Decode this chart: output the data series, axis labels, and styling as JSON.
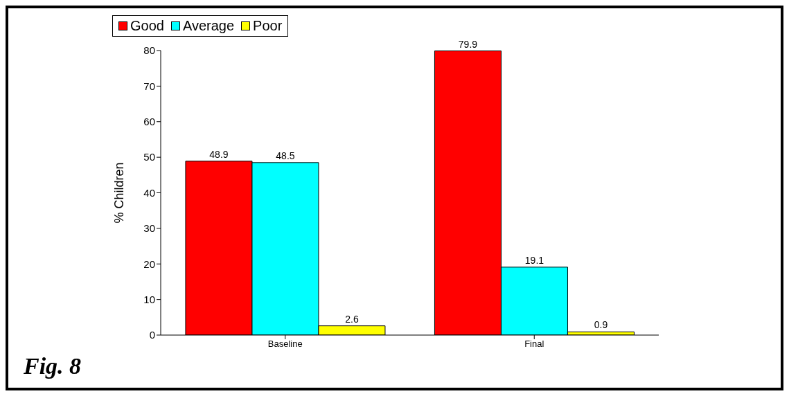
{
  "chart_data": {
    "type": "bar",
    "ylabel": "% Children",
    "categories": [
      "Baseline",
      "Final"
    ],
    "series": [
      {
        "name": "Good",
        "color": "#ff0000",
        "values": [
          48.9,
          79.9
        ]
      },
      {
        "name": "Average",
        "color": "#00ffff",
        "values": [
          48.5,
          19.1
        ]
      },
      {
        "name": "Poor",
        "color": "#ffff00",
        "values": [
          2.6,
          0.9
        ]
      }
    ],
    "ylim": [
      0,
      80
    ],
    "yticks": [
      0,
      10,
      20,
      30,
      40,
      50,
      60,
      70,
      80
    ],
    "grid": false,
    "legend": "top",
    "data_labels": true,
    "annotations": [
      "Fig. 8"
    ]
  }
}
